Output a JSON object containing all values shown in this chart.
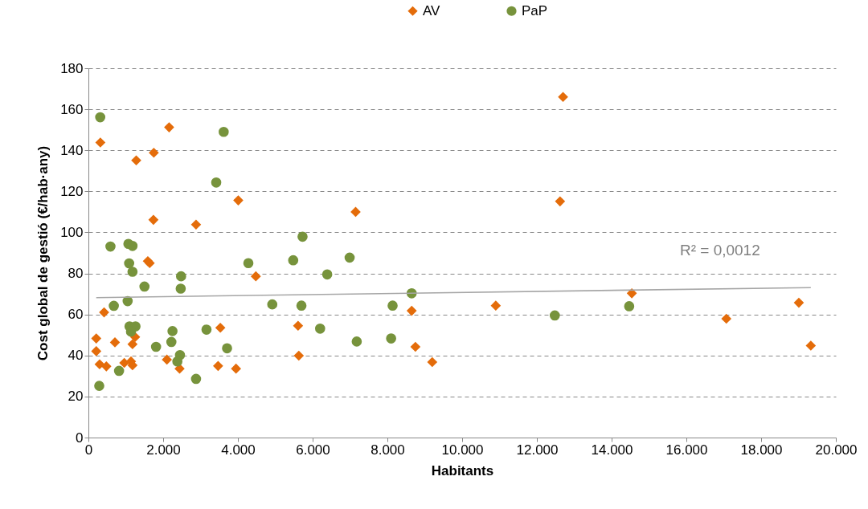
{
  "chart_data": {
    "type": "scatter",
    "xlabel": "Habitants",
    "ylabel": "Cost global de gestió (€/hab·any)",
    "legend": "top",
    "grid": "y",
    "xlim": [
      0,
      20000
    ],
    "ylim": [
      0,
      180
    ],
    "xticks": [
      0,
      {
        "value": 2000,
        "label": "2.000"
      },
      {
        "value": 4000,
        "label": "4.000"
      },
      {
        "value": 6000,
        "label": "6.000"
      },
      {
        "value": 8000,
        "label": "8.000"
      },
      {
        "value": 10000,
        "label": "10.000"
      },
      {
        "value": 12000,
        "label": "12.000"
      },
      {
        "value": 14000,
        "label": "14.000"
      },
      {
        "value": 16000,
        "label": "16.000"
      },
      {
        "value": 18000,
        "label": "18.000"
      },
      {
        "value": 20000,
        "label": "20.000"
      }
    ],
    "yticks": [
      0,
      20,
      40,
      60,
      80,
      100,
      120,
      140,
      160,
      180
    ],
    "annotations": [
      "R² = 0,0012"
    ],
    "series": [
      {
        "name": "AV",
        "color": "#e46c0a",
        "marker": "diamond",
        "x": [
          320,
          2160,
          1280,
          1750,
          4010,
          1740,
          2880,
          1590,
          1640,
          420,
          3530,
          210,
          210,
          710,
          1180,
          1250,
          300,
          480,
          960,
          1140,
          1180,
          2100,
          2440,
          3470,
          3950,
          4480,
          7150,
          5610,
          5630,
          12700,
          12620,
          8650,
          10900,
          8750,
          9200,
          14540,
          17070,
          19010,
          19330
        ],
        "values": [
          143.8,
          151.2,
          135.1,
          138.8,
          115.6,
          106.1,
          103.8,
          86,
          85,
          61,
          53.5,
          48.3,
          42.1,
          46.4,
          45.5,
          49,
          35.7,
          34.7,
          36.4,
          37.1,
          35.2,
          38,
          33.6,
          34.9,
          33.6,
          78.6,
          110,
          54.5,
          39.9,
          166,
          115.1,
          61.8,
          64.3,
          44.2,
          36.8,
          70.3,
          57.9,
          65.7,
          44.8
        ]
      },
      {
        "name": "PaP",
        "color": "#77933c",
        "marker": "circle",
        "x": [
          316,
          3620,
          3420,
          590,
          1070,
          1180,
          1090,
          1180,
          4280,
          1500,
          2480,
          2470,
          1050,
          680,
          1100,
          1260,
          1140,
          2250,
          2220,
          3160,
          3710,
          1810,
          2450,
          2380,
          820,
          2880,
          290,
          5730,
          5480,
          6990,
          6390,
          4920,
          5700,
          8140,
          6200,
          7180,
          8100,
          8650,
          12480,
          14470
        ],
        "values": [
          156.1,
          149,
          124.3,
          93.1,
          94.4,
          93.4,
          84.9,
          80.8,
          85,
          73.6,
          78.6,
          72.6,
          66.5,
          64.2,
          54.2,
          54.2,
          51.6,
          51.9,
          46.6,
          52.6,
          43.5,
          44.2,
          40.2,
          37.1,
          32.5,
          28.6,
          25.2,
          97.9,
          86.4,
          87.7,
          79.5,
          64.9,
          64.3,
          64.3,
          53.1,
          46.8,
          48.3,
          70.3,
          59.5,
          64
        ]
      },
      {
        "type": "line",
        "color": "#a6a6a6",
        "x": [
          210,
          19330
        ],
        "values": [
          68.2,
          73.1
        ]
      }
    ]
  }
}
